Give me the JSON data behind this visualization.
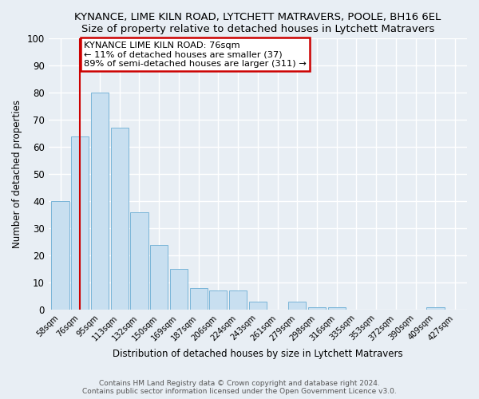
{
  "title": "KYNANCE, LIME KILN ROAD, LYTCHETT MATRAVERS, POOLE, BH16 6EL",
  "subtitle": "Size of property relative to detached houses in Lytchett Matravers",
  "xlabel": "Distribution of detached houses by size in Lytchett Matravers",
  "ylabel": "Number of detached properties",
  "bin_labels": [
    "58sqm",
    "76sqm",
    "95sqm",
    "113sqm",
    "132sqm",
    "150sqm",
    "169sqm",
    "187sqm",
    "206sqm",
    "224sqm",
    "243sqm",
    "261sqm",
    "279sqm",
    "298sqm",
    "316sqm",
    "335sqm",
    "353sqm",
    "372sqm",
    "390sqm",
    "409sqm",
    "427sqm"
  ],
  "bar_values": [
    40,
    64,
    80,
    67,
    36,
    24,
    15,
    8,
    7,
    7,
    3,
    0,
    3,
    1,
    1,
    0,
    0,
    0,
    0,
    1,
    0
  ],
  "bar_color": "#c8dff0",
  "bar_edge_color": "#7ab5d8",
  "vline_x": 1,
  "vline_color": "#cc0000",
  "annotation_title": "KYNANCE LIME KILN ROAD: 76sqm",
  "annotation_line1": "← 11% of detached houses are smaller (37)",
  "annotation_line2": "89% of semi-detached houses are larger (311) →",
  "box_edge_color": "#cc0000",
  "ylim": [
    0,
    100
  ],
  "yticks": [
    0,
    10,
    20,
    30,
    40,
    50,
    60,
    70,
    80,
    90,
    100
  ],
  "footer1": "Contains HM Land Registry data © Crown copyright and database right 2024.",
  "footer2": "Contains public sector information licensed under the Open Government Licence v3.0.",
  "background_color": "#e8eef4",
  "grid_color": "#ffffff",
  "figsize": [
    6.0,
    5.0
  ],
  "dpi": 100
}
